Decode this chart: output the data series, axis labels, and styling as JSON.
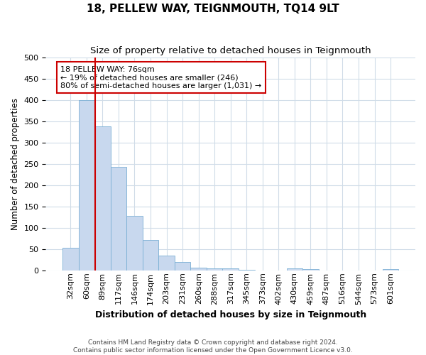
{
  "title": "18, PELLEW WAY, TEIGNMOUTH, TQ14 9LT",
  "subtitle": "Size of property relative to detached houses in Teignmouth",
  "xlabel": "Distribution of detached houses by size in Teignmouth",
  "ylabel": "Number of detached properties",
  "footnote1": "Contains HM Land Registry data © Crown copyright and database right 2024.",
  "footnote2": "Contains public sector information licensed under the Open Government Licence v3.0.",
  "bar_labels": [
    "32sqm",
    "60sqm",
    "89sqm",
    "117sqm",
    "146sqm",
    "174sqm",
    "203sqm",
    "231sqm",
    "260sqm",
    "288sqm",
    "317sqm",
    "345sqm",
    "373sqm",
    "402sqm",
    "430sqm",
    "459sqm",
    "487sqm",
    "516sqm",
    "544sqm",
    "573sqm",
    "601sqm"
  ],
  "bar_values": [
    53,
    400,
    338,
    242,
    128,
    72,
    35,
    19,
    7,
    5,
    4,
    1,
    0,
    0,
    5,
    3,
    0,
    0,
    0,
    0,
    3
  ],
  "bar_color": "#c8d8ee",
  "bar_edge_color": "#7aafd4",
  "fig_bg_color": "#ffffff",
  "plot_bg_color": "#ffffff",
  "grid_color": "#d0dce8",
  "vline_color": "#cc0000",
  "annotation_text": "18 PELLEW WAY: 76sqm\n← 19% of detached houses are smaller (246)\n80% of semi-detached houses are larger (1,031) →",
  "annotation_box_color": "#ffffff",
  "annotation_box_edge_color": "#cc0000",
  "ylim": [
    0,
    500
  ],
  "yticks": [
    0,
    50,
    100,
    150,
    200,
    250,
    300,
    350,
    400,
    450,
    500
  ],
  "title_fontsize": 11,
  "subtitle_fontsize": 9.5,
  "xlabel_fontsize": 9,
  "ylabel_fontsize": 8.5,
  "tick_fontsize": 8,
  "xtick_fontsize": 8,
  "footnote_fontsize": 6.5
}
